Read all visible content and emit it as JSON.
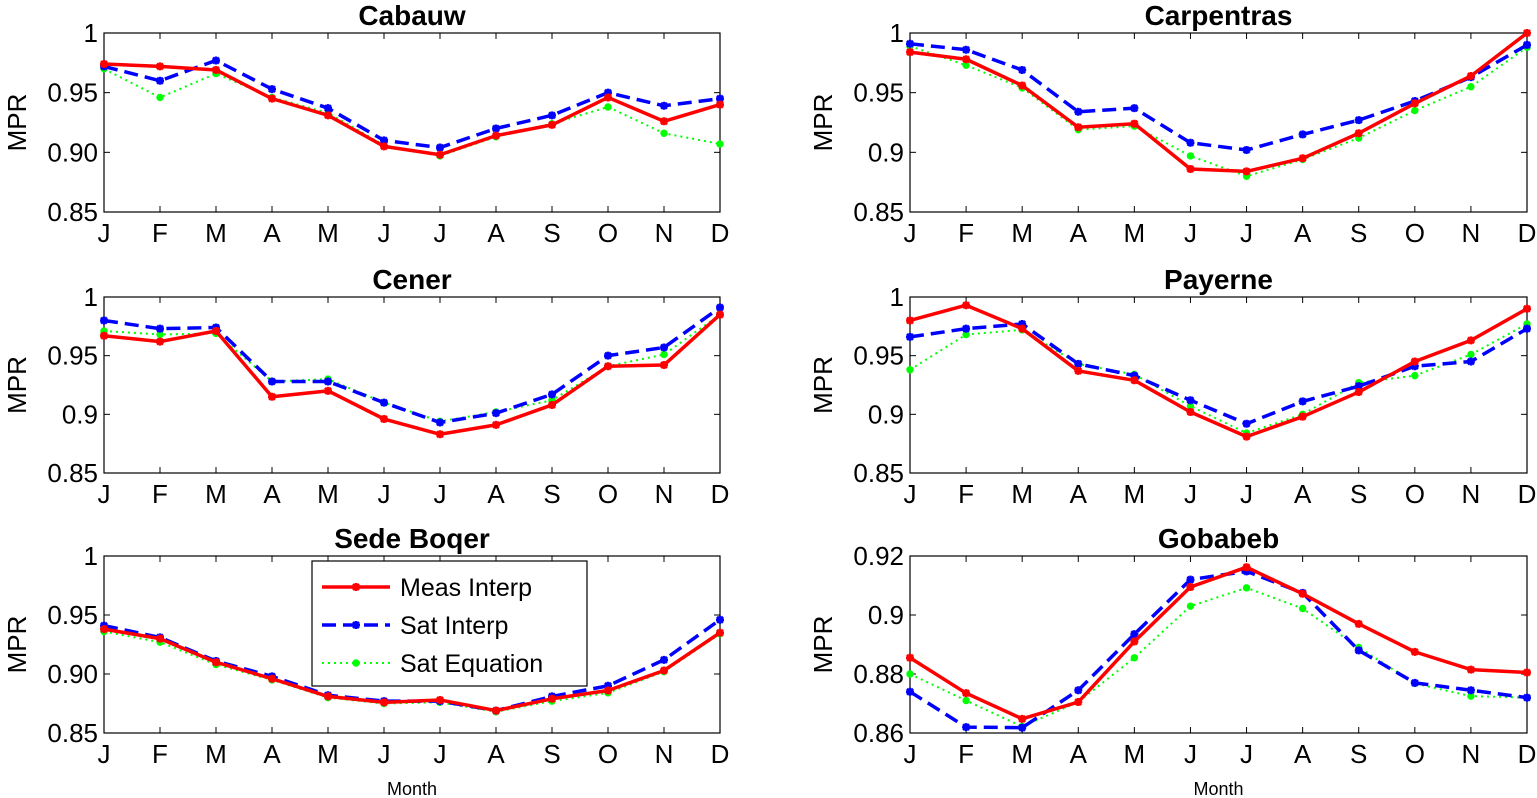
{
  "figure": {
    "x_label": "Month",
    "y_label": "MPR"
  },
  "colors": {
    "meas_interp": "#ff0000",
    "sat_interp": "#0000ff",
    "sat_equation": "#00ff00"
  },
  "legend": {
    "placement": "inside-top-center, Sede Boqer panel",
    "items": [
      "Meas Interp",
      "Sat Interp",
      "Sat Equation"
    ]
  },
  "chart_data": [
    {
      "type": "line",
      "title": "Cabauw",
      "ylabel": "MPR",
      "xlabel": "",
      "categories": [
        "J",
        "F",
        "M",
        "A",
        "M",
        "J",
        "J",
        "A",
        "S",
        "O",
        "N",
        "D"
      ],
      "ylim": [
        0.85,
        1
      ],
      "yticks": [
        "0.85",
        "0.90",
        "0.95",
        "1"
      ],
      "series": [
        {
          "name": "Meas Interp",
          "values": [
            0.974,
            0.972,
            0.969,
            0.945,
            0.931,
            0.905,
            0.898,
            0.914,
            0.923,
            0.946,
            0.926,
            0.94
          ]
        },
        {
          "name": "Sat Interp",
          "values": [
            0.972,
            0.96,
            0.977,
            0.953,
            0.937,
            0.91,
            0.904,
            0.92,
            0.931,
            0.95,
            0.939,
            0.945
          ]
        },
        {
          "name": "Sat Equation",
          "values": [
            0.97,
            0.946,
            0.966,
            0.946,
            0.933,
            0.906,
            0.897,
            0.913,
            0.924,
            0.938,
            0.916,
            0.907
          ]
        }
      ]
    },
    {
      "type": "line",
      "title": "Carpentras",
      "ylabel": "MPR",
      "xlabel": "",
      "categories": [
        "J",
        "F",
        "M",
        "A",
        "M",
        "J",
        "J",
        "A",
        "S",
        "O",
        "N",
        "D"
      ],
      "ylim": [
        0.85,
        1
      ],
      "yticks": [
        "0.85",
        "0.9",
        "0.95",
        "1"
      ],
      "series": [
        {
          "name": "Meas Interp",
          "values": [
            0.984,
            0.978,
            0.956,
            0.921,
            0.924,
            0.886,
            0.884,
            0.895,
            0.916,
            0.941,
            0.964,
            1.0
          ]
        },
        {
          "name": "Sat Interp",
          "values": [
            0.991,
            0.986,
            0.969,
            0.934,
            0.937,
            0.908,
            0.902,
            0.915,
            0.927,
            0.943,
            0.963,
            0.99
          ]
        },
        {
          "name": "Sat Equation",
          "values": [
            0.989,
            0.973,
            0.954,
            0.919,
            0.922,
            0.897,
            0.88,
            0.894,
            0.912,
            0.935,
            0.955,
            0.988
          ]
        }
      ]
    },
    {
      "type": "line",
      "title": "Cener",
      "ylabel": "MPR",
      "xlabel": "",
      "categories": [
        "J",
        "F",
        "M",
        "A",
        "M",
        "J",
        "J",
        "A",
        "S",
        "O",
        "N",
        "D"
      ],
      "ylim": [
        0.85,
        1
      ],
      "yticks": [
        "0.85",
        "0.9",
        "0.95",
        "1"
      ],
      "series": [
        {
          "name": "Meas Interp",
          "values": [
            0.967,
            0.962,
            0.971,
            0.915,
            0.92,
            0.896,
            0.883,
            0.891,
            0.908,
            0.941,
            0.942,
            0.985
          ]
        },
        {
          "name": "Sat Interp",
          "values": [
            0.98,
            0.973,
            0.974,
            0.928,
            0.928,
            0.91,
            0.893,
            0.901,
            0.917,
            0.95,
            0.957,
            0.991
          ]
        },
        {
          "name": "Sat Equation",
          "values": [
            0.971,
            0.968,
            0.969,
            0.928,
            0.93,
            0.91,
            0.894,
            0.902,
            0.912,
            0.941,
            0.951,
            0.985
          ]
        }
      ]
    },
    {
      "type": "line",
      "title": "Payerne",
      "ylabel": "MPR",
      "xlabel": "",
      "categories": [
        "J",
        "F",
        "M",
        "A",
        "M",
        "J",
        "J",
        "A",
        "S",
        "O",
        "N",
        "D"
      ],
      "ylim": [
        0.85,
        1
      ],
      "yticks": [
        "0.85",
        "0.9",
        "0.95",
        "1"
      ],
      "series": [
        {
          "name": "Meas Interp",
          "values": [
            0.98,
            0.993,
            0.973,
            0.937,
            0.929,
            0.902,
            0.881,
            0.898,
            0.919,
            0.945,
            0.963,
            0.99
          ]
        },
        {
          "name": "Sat Interp",
          "values": [
            0.966,
            0.973,
            0.977,
            0.943,
            0.933,
            0.912,
            0.892,
            0.911,
            0.924,
            0.941,
            0.945,
            0.973
          ]
        },
        {
          "name": "Sat Equation",
          "values": [
            0.938,
            0.968,
            0.972,
            0.943,
            0.934,
            0.907,
            0.884,
            0.9,
            0.927,
            0.933,
            0.951,
            0.977
          ]
        }
      ]
    },
    {
      "type": "line",
      "title": "Sede Boqer",
      "ylabel": "MPR",
      "xlabel": "Month",
      "categories": [
        "J",
        "F",
        "M",
        "A",
        "M",
        "J",
        "J",
        "A",
        "S",
        "O",
        "N",
        "D"
      ],
      "ylim": [
        0.85,
        1
      ],
      "yticks": [
        "0.85",
        "0.90",
        "0.95",
        "1"
      ],
      "series": [
        {
          "name": "Meas Interp",
          "values": [
            0.938,
            0.93,
            0.91,
            0.896,
            0.881,
            0.876,
            0.878,
            0.869,
            0.879,
            0.886,
            0.903,
            0.935
          ]
        },
        {
          "name": "Sat Interp",
          "values": [
            0.941,
            0.931,
            0.911,
            0.898,
            0.882,
            0.877,
            0.877,
            0.869,
            0.881,
            0.89,
            0.912,
            0.946
          ]
        },
        {
          "name": "Sat Equation",
          "values": [
            0.936,
            0.927,
            0.908,
            0.895,
            0.88,
            0.875,
            0.876,
            0.868,
            0.877,
            0.884,
            0.902,
            0.934
          ]
        }
      ]
    },
    {
      "type": "line",
      "title": "Gobabeb",
      "ylabel": "MPR",
      "xlabel": "Month",
      "categories": [
        "J",
        "F",
        "M",
        "A",
        "M",
        "J",
        "J",
        "A",
        "S",
        "O",
        "N",
        "D"
      ],
      "ylim": [
        0.86,
        0.92
      ],
      "yticks": [
        "0.86",
        "0.88",
        "0.9",
        "0.92"
      ],
      "series": [
        {
          "name": "Meas Interp",
          "values": [
            0.8855,
            0.8735,
            0.8648,
            0.8705,
            0.891,
            0.9095,
            0.9162,
            0.9072,
            0.897,
            0.8875,
            0.8815,
            0.8805
          ]
        },
        {
          "name": "Sat Interp",
          "values": [
            0.874,
            0.862,
            0.8618,
            0.8745,
            0.8935,
            0.912,
            0.9148,
            0.9075,
            0.888,
            0.877,
            0.8745,
            0.872
          ]
        },
        {
          "name": "Sat Equation",
          "values": [
            0.88,
            0.871,
            0.8622,
            0.8705,
            0.8855,
            0.903,
            0.9092,
            0.9022,
            0.889,
            0.8768,
            0.8725,
            0.872
          ]
        }
      ]
    }
  ]
}
